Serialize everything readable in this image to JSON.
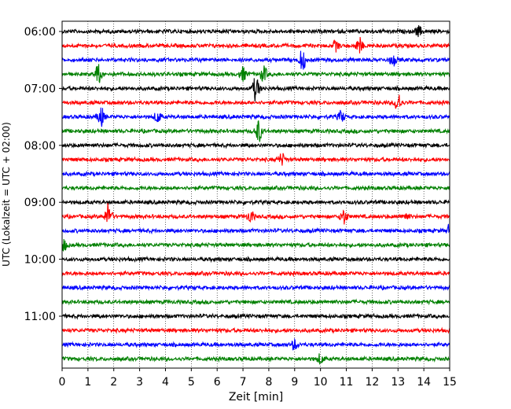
{
  "chart_data": {
    "type": "line",
    "title": "",
    "xlabel": "Zeit  [min]",
    "ylabel": "UTC (Lokalzeit = UTC + 02:00)",
    "xlim": [
      0,
      15
    ],
    "x_ticks": [
      "0",
      "1",
      "2",
      "3",
      "4",
      "5",
      "6",
      "7",
      "8",
      "9",
      "10",
      "11",
      "12",
      "13",
      "14",
      "15"
    ],
    "y_ticks": [
      "06:00",
      "07:00",
      "08:00",
      "09:00",
      "10:00",
      "11:00"
    ],
    "grid": "vertical dotted",
    "trace_interval_minutes": 15,
    "first_trace": "06:00",
    "colors": [
      "#000000",
      "#ff0000",
      "#0000ff",
      "#008000"
    ],
    "traces": [
      {
        "start": "06:00",
        "color": "#000000",
        "events": [
          {
            "t": 13.8,
            "amp": 0.5
          }
        ]
      },
      {
        "start": "06:15",
        "color": "#ff0000",
        "events": [
          {
            "t": 10.6,
            "amp": 0.5
          },
          {
            "t": 11.5,
            "amp": 0.8
          }
        ]
      },
      {
        "start": "06:30",
        "color": "#0000ff",
        "events": [
          {
            "t": 9.3,
            "amp": 1.1
          },
          {
            "t": 12.8,
            "amp": 0.6
          }
        ]
      },
      {
        "start": "06:45",
        "color": "#008000",
        "events": [
          {
            "t": 1.4,
            "amp": 1.0
          },
          {
            "t": 7.0,
            "amp": 0.7
          },
          {
            "t": 7.8,
            "amp": 0.8
          }
        ]
      },
      {
        "start": "07:00",
        "color": "#000000",
        "events": [
          {
            "t": 7.5,
            "amp": 1.3
          }
        ]
      },
      {
        "start": "07:15",
        "color": "#ff0000",
        "events": [
          {
            "t": 13.0,
            "amp": 1.0
          }
        ]
      },
      {
        "start": "07:30",
        "color": "#0000ff",
        "events": [
          {
            "t": 1.5,
            "amp": 1.0
          },
          {
            "t": 3.7,
            "amp": 0.6
          },
          {
            "t": 10.8,
            "amp": 0.6
          }
        ]
      },
      {
        "start": "07:45",
        "color": "#008000",
        "events": [
          {
            "t": 7.6,
            "amp": 1.2
          }
        ]
      },
      {
        "start": "08:00",
        "color": "#000000",
        "events": []
      },
      {
        "start": "08:15",
        "color": "#ff0000",
        "events": [
          {
            "t": 8.5,
            "amp": 0.6
          }
        ]
      },
      {
        "start": "08:30",
        "color": "#0000ff",
        "events": []
      },
      {
        "start": "08:45",
        "color": "#008000",
        "events": []
      },
      {
        "start": "09:00",
        "color": "#000000",
        "events": []
      },
      {
        "start": "09:15",
        "color": "#ff0000",
        "events": [
          {
            "t": 1.8,
            "amp": 1.4
          },
          {
            "t": 7.3,
            "amp": 0.6
          },
          {
            "t": 10.9,
            "amp": 0.8
          },
          {
            "t": 13.3,
            "amp": 0.4
          }
        ]
      },
      {
        "start": "09:30",
        "color": "#0000ff",
        "events": [
          {
            "t": 15.0,
            "amp": 0.6
          }
        ]
      },
      {
        "start": "09:45",
        "color": "#008000",
        "events": [
          {
            "t": 0.05,
            "amp": 0.7
          }
        ]
      },
      {
        "start": "10:00",
        "color": "#000000",
        "events": []
      },
      {
        "start": "10:15",
        "color": "#ff0000",
        "events": []
      },
      {
        "start": "10:30",
        "color": "#0000ff",
        "events": []
      },
      {
        "start": "10:45",
        "color": "#008000",
        "events": []
      },
      {
        "start": "11:00",
        "color": "#000000",
        "events": []
      },
      {
        "start": "11:15",
        "color": "#ff0000",
        "events": []
      },
      {
        "start": "11:30",
        "color": "#0000ff",
        "events": [
          {
            "t": 9.0,
            "amp": 0.5
          }
        ]
      },
      {
        "start": "11:45",
        "color": "#008000",
        "events": [
          {
            "t": 10.0,
            "amp": 0.5
          }
        ]
      }
    ]
  }
}
